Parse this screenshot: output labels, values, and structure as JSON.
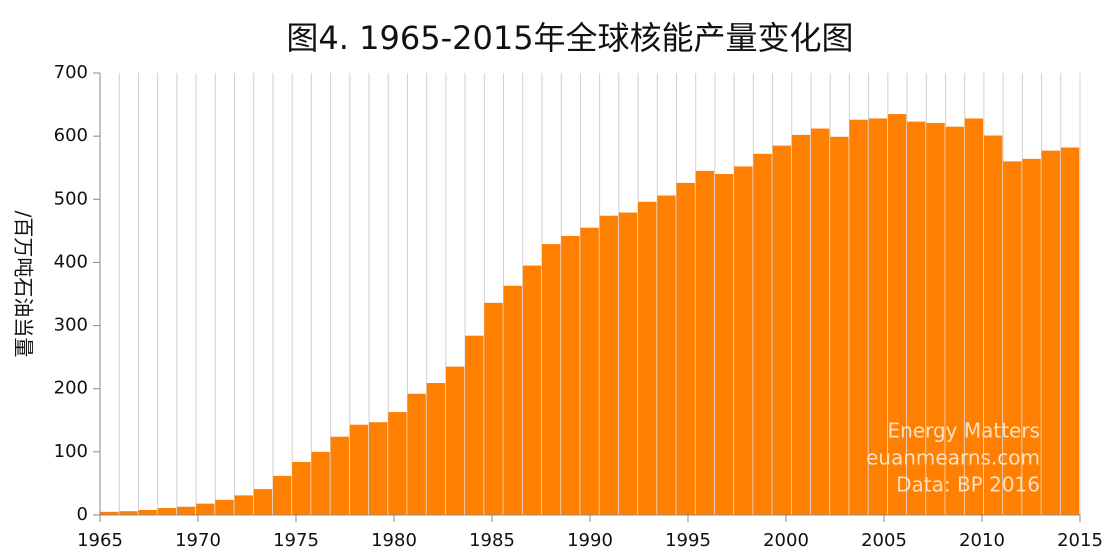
{
  "chart_data": {
    "type": "bar",
    "title": "图4. 1965-2015年全球核能产量变化图",
    "y_label": "/百万吨石油当量",
    "annotations": [
      "Energy Matters",
      "euanmearns.com",
      "Data: BP 2016"
    ],
    "color": "#ff7f00",
    "x": [
      1965,
      1966,
      1967,
      1968,
      1969,
      1970,
      1971,
      1972,
      1973,
      1974,
      1975,
      1976,
      1977,
      1978,
      1979,
      1980,
      1981,
      1982,
      1983,
      1984,
      1985,
      1986,
      1987,
      1988,
      1989,
      1990,
      1991,
      1992,
      1993,
      1994,
      1995,
      1996,
      1997,
      1998,
      1999,
      2000,
      2001,
      2002,
      2003,
      2004,
      2005,
      2006,
      2007,
      2008,
      2009,
      2010,
      2011,
      2012,
      2013,
      2014,
      2015
    ],
    "values": [
      5,
      6,
      8,
      11,
      13,
      18,
      24,
      31,
      41,
      62,
      84,
      100,
      124,
      143,
      147,
      163,
      192,
      209,
      235,
      284,
      336,
      363,
      395,
      429,
      442,
      455,
      474,
      479,
      496,
      506,
      526,
      545,
      540,
      552,
      572,
      585,
      602,
      612,
      599,
      626,
      628,
      635,
      623,
      621,
      615,
      628,
      601,
      560,
      564,
      577,
      582
    ],
    "xlim": [
      1965,
      2015
    ],
    "xticks": [
      1965,
      1970,
      1975,
      1980,
      1985,
      1990,
      1995,
      2000,
      2005,
      2010,
      2015
    ],
    "ylim": [
      0,
      700
    ],
    "yticks": [
      0,
      100,
      200,
      300,
      400,
      500,
      600,
      700
    ],
    "grid": true
  }
}
